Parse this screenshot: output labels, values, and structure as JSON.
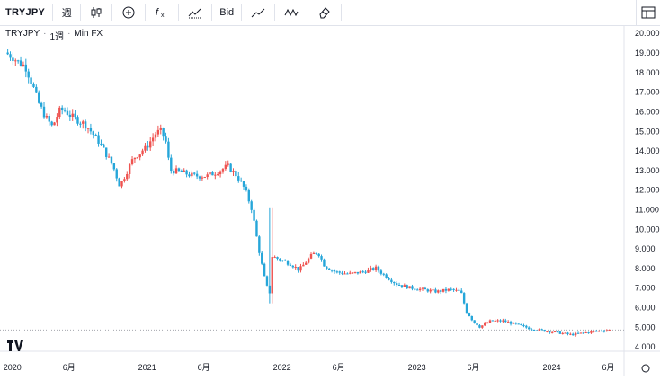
{
  "toolbar": {
    "symbol": "TRYJPY",
    "interval": "週",
    "bid_label": "Bid"
  },
  "legend": {
    "symbol": "TRYJPY",
    "interval": "1週",
    "source": "Min FX"
  },
  "colors": {
    "up": "#ef5350",
    "down": "#26a6d9",
    "up_dark": "#a83244",
    "grid": "#e0e3eb"
  },
  "chart_data": {
    "type": "candlestick",
    "title": "",
    "xlabel": "",
    "ylabel": "",
    "x_ticks": [
      "2020",
      "6月",
      "2021",
      "6月",
      "2022",
      "6月",
      "2023",
      "6月",
      "2024",
      "6月"
    ],
    "y_ticks": [
      "20.000",
      "19.000",
      "18.000",
      "17.000",
      "16.000",
      "15.000",
      "14.000",
      "13.000",
      "12.000",
      "11.000",
      "10.000",
      "9.000",
      "8.000",
      "7.000",
      "6.000",
      "5.000",
      "4.000"
    ],
    "ylim": [
      3.8,
      20.4
    ],
    "last_price": 4.84,
    "series_close": [
      [
        2020.0,
        19.0
      ],
      [
        2020.05,
        18.8
      ],
      [
        2020.1,
        18.5
      ],
      [
        2020.15,
        18.3
      ],
      [
        2020.2,
        17.4
      ],
      [
        2020.25,
        16.4
      ],
      [
        2020.3,
        15.7
      ],
      [
        2020.35,
        15.2
      ],
      [
        2020.4,
        16.0
      ],
      [
        2020.43,
        16.1
      ],
      [
        2020.5,
        15.7
      ],
      [
        2020.6,
        15.3
      ],
      [
        2020.7,
        14.4
      ],
      [
        2020.8,
        13.2
      ],
      [
        2020.85,
        12.2
      ],
      [
        2020.88,
        12.6
      ],
      [
        2020.95,
        13.6
      ],
      [
        2021.05,
        14.2
      ],
      [
        2021.12,
        14.9
      ],
      [
        2021.16,
        15.0
      ],
      [
        2021.2,
        14.3
      ],
      [
        2021.22,
        13.0
      ],
      [
        2021.3,
        12.9
      ],
      [
        2021.4,
        12.7
      ],
      [
        2021.5,
        12.7
      ],
      [
        2021.6,
        13.0
      ],
      [
        2021.65,
        13.2
      ],
      [
        2021.72,
        12.7
      ],
      [
        2021.78,
        12.0
      ],
      [
        2021.83,
        11.0
      ],
      [
        2021.88,
        9.0
      ],
      [
        2021.92,
        7.6
      ],
      [
        2021.96,
        6.6
      ],
      [
        2021.98,
        8.6
      ],
      [
        2022.05,
        8.4
      ],
      [
        2022.12,
        8.2
      ],
      [
        2022.18,
        7.9
      ],
      [
        2022.28,
        8.7
      ],
      [
        2022.32,
        8.8
      ],
      [
        2022.37,
        8.1
      ],
      [
        2022.45,
        7.8
      ],
      [
        2022.55,
        7.7
      ],
      [
        2022.65,
        7.8
      ],
      [
        2022.75,
        8.0
      ],
      [
        2022.8,
        7.7
      ],
      [
        2022.9,
        7.2
      ],
      [
        2023.0,
        7.0
      ],
      [
        2023.1,
        6.9
      ],
      [
        2023.2,
        6.8
      ],
      [
        2023.3,
        6.9
      ],
      [
        2023.38,
        6.8
      ],
      [
        2023.42,
        5.8
      ],
      [
        2023.47,
        5.3
      ],
      [
        2023.52,
        5.0
      ],
      [
        2023.6,
        5.3
      ],
      [
        2023.7,
        5.3
      ],
      [
        2023.8,
        5.1
      ],
      [
        2023.9,
        4.9
      ],
      [
        2024.0,
        4.8
      ],
      [
        2024.1,
        4.7
      ],
      [
        2024.2,
        4.6
      ],
      [
        2024.3,
        4.7
      ],
      [
        2024.4,
        4.8
      ],
      [
        2024.48,
        4.84
      ]
    ]
  }
}
